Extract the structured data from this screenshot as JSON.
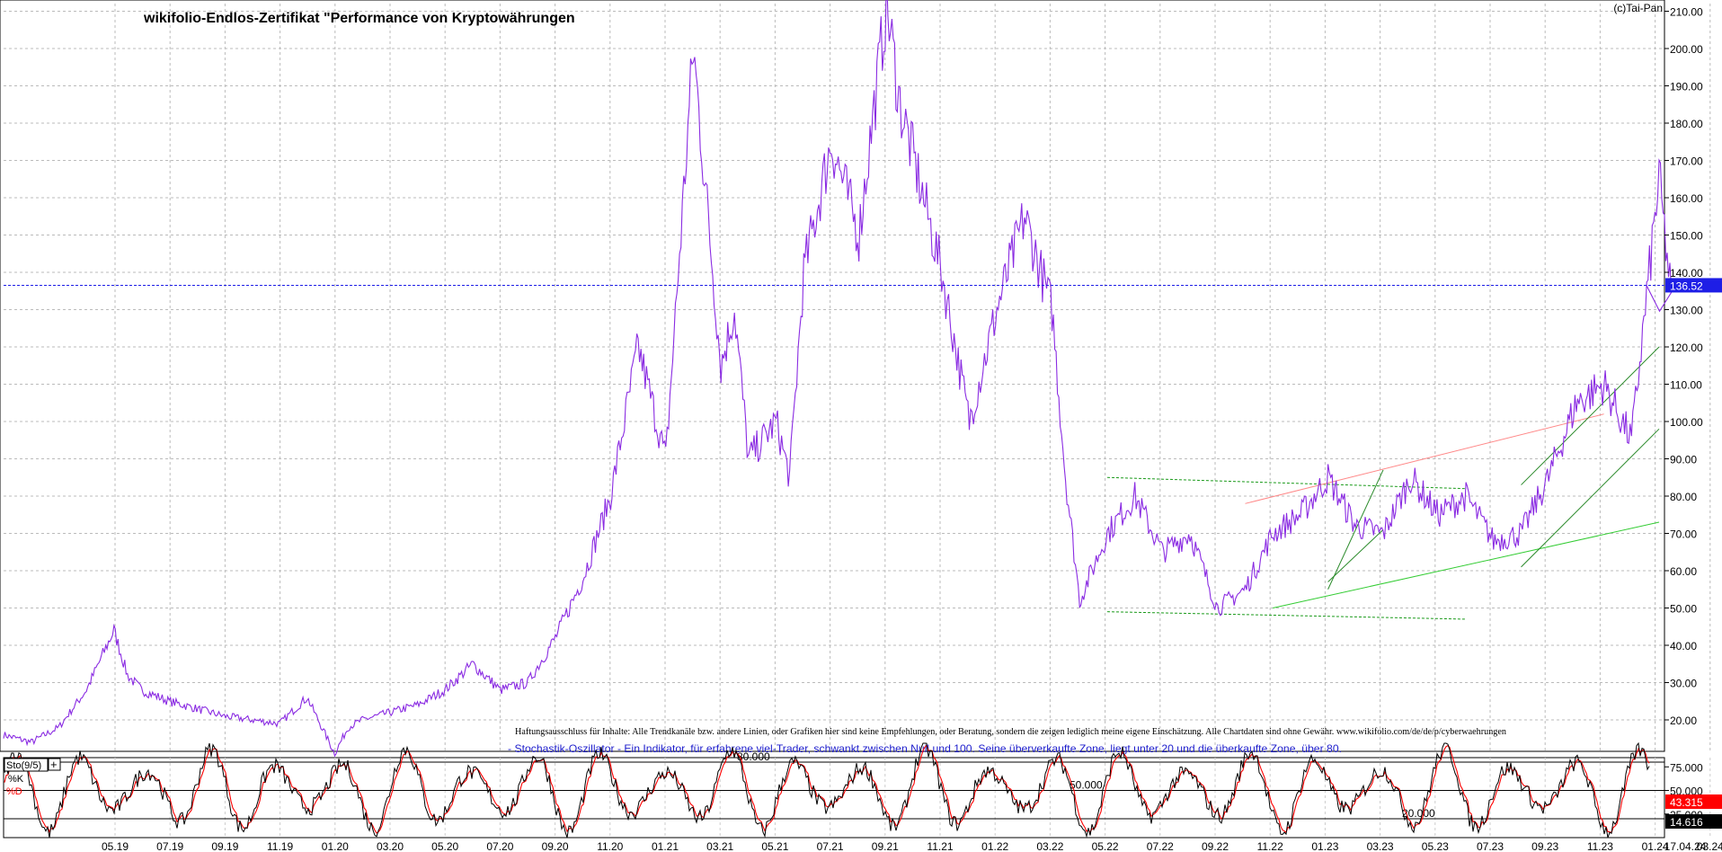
{
  "chart_data": [
    {
      "type": "line",
      "title": "wikifolio-Endlos-Zertifikat \"Performance von Kryptowährungen",
      "copyright": "(c)Tai-Pan",
      "disclaimer": "Haftungsausschluss für Inhalte: Alle Trendkanäle bzw. andere Linien, oder Grafiken hier sind keine Empfehlungen, oder Beratung, sondern die zeigen lediglich meine eigene Einschätzung. Alle Chartdaten sind ohne Gewähr. www.wikifolio.com/de/de/p/cyberwaehrungen",
      "xlabel": "",
      "ylabel": "",
      "x_ticks": [
        "05.19",
        "07.19",
        "09.19",
        "11.19",
        "01.20",
        "03.20",
        "05.20",
        "07.20",
        "09.20",
        "11.20",
        "01.21",
        "03.21",
        "05.21",
        "07.21",
        "09.21",
        "11.21",
        "01.22",
        "03.22",
        "05.22",
        "07.22",
        "09.22",
        "11.22",
        "01.23",
        "03.23",
        "05.23",
        "07.23",
        "09.23",
        "11.23",
        "01.24",
        "03.24",
        "17.04.24"
      ],
      "y_ticks": [
        20,
        30,
        40,
        50,
        60,
        70,
        80,
        90,
        100,
        110,
        120,
        130,
        140,
        150,
        160,
        170,
        180,
        190,
        200,
        210
      ],
      "y_tick_labels": [
        "20.00",
        "30.00",
        "40.00",
        "50.00",
        "60.00",
        "70.00",
        "80.00",
        "90.00",
        "100.00",
        "110.00",
        "120.00",
        "130.00",
        "140.00",
        "150.00",
        "160.00",
        "170.00",
        "180.00",
        "190.00",
        "200.00",
        "210.00"
      ],
      "ylim": [
        10,
        213
      ],
      "grid": true,
      "current_value": 136.52,
      "current_value_label": "136.52",
      "series": [
        {
          "color": "#8a2be2",
          "x": [
            "2019-03",
            "2019-04",
            "2019-05",
            "2019-06",
            "2019-07",
            "2019-07",
            "2019-08",
            "2019-09",
            "2019-10",
            "2019-11",
            "2019-12",
            "2020-01",
            "2020-02",
            "2020-03",
            "2020-03",
            "2020-04",
            "2020-05",
            "2020-06",
            "2020-07",
            "2020-08",
            "2020-09",
            "2020-10",
            "2020-11",
            "2020-12",
            "2021-01",
            "2021-02",
            "2021-03",
            "2021-04",
            "2021-05",
            "2021-05",
            "2021-06",
            "2021-07",
            "2021-07",
            "2021-08",
            "2021-09",
            "2021-10",
            "2021-11",
            "2021-11",
            "2021-12",
            "2022-01",
            "2022-02",
            "2022-03",
            "2022-04",
            "2022-05",
            "2022-05",
            "2022-06",
            "2022-07",
            "2022-08",
            "2022-09",
            "2022-10",
            "2022-11",
            "2022-12",
            "2023-01",
            "2023-02",
            "2023-03",
            "2023-04",
            "2023-05",
            "2023-06",
            "2023-07",
            "2023-08",
            "2023-09",
            "2023-10",
            "2023-11",
            "2023-12",
            "2024-01",
            "2024-02",
            "2024-03",
            "2024-03",
            "2024-04"
          ],
          "y": [
            16,
            14,
            18,
            28,
            44,
            32,
            28,
            25,
            23,
            21,
            20,
            19,
            26,
            11,
            18,
            20,
            22,
            24,
            28,
            35,
            28,
            30,
            42,
            58,
            80,
            120,
            90,
            200,
            115,
            130,
            90,
            100,
            85,
            140,
            175,
            150,
            212,
            185,
            170,
            140,
            100,
            130,
            155,
            130,
            85,
            52,
            70,
            80,
            65,
            70,
            50,
            55,
            70,
            75,
            85,
            72,
            70,
            85,
            75,
            80,
            68,
            70,
            85,
            105,
            110,
            95,
            165,
            130,
            136.52
          ]
        }
      ],
      "annotations": [
        {
          "type": "support-line-dashed",
          "color": "#1a9a1a",
          "x": [
            "2022-07",
            "2023-08"
          ],
          "y": [
            85,
            82
          ]
        },
        {
          "type": "support-line-dashed",
          "color": "#1a9a1a",
          "x": [
            "2022-07",
            "2023-08"
          ],
          "y": [
            49,
            47
          ]
        },
        {
          "type": "trend-line",
          "color": "#ff8888",
          "x": [
            "2022-12",
            "2024-01"
          ],
          "y": [
            78,
            102
          ]
        },
        {
          "type": "trend-line",
          "color": "#33cc33",
          "x": [
            "2023-01",
            "2024-03"
          ],
          "y": [
            50,
            73
          ]
        },
        {
          "type": "channel-line",
          "color": "#2a8a2a",
          "x": [
            "2023-03",
            "2023-05"
          ],
          "y": [
            55,
            87
          ]
        },
        {
          "type": "channel-line",
          "color": "#2a8a2a",
          "x": [
            "2023-03",
            "2023-05"
          ],
          "y": [
            57,
            71
          ]
        },
        {
          "type": "channel-line",
          "color": "#2a8a2a",
          "x": [
            "2023-10",
            "2024-03"
          ],
          "y": [
            83,
            120
          ]
        },
        {
          "type": "channel-line",
          "color": "#2a8a2a",
          "x": [
            "2023-10",
            "2024-03"
          ],
          "y": [
            61,
            98
          ]
        }
      ]
    },
    {
      "type": "line",
      "name": "Sto(9/5)",
      "note": "- Stochastik-Oszillator - Ein Indikator, für erfahrene viel-Trader, schwankt zwischen Null und 100. Seine überverkaufte Zone, liegt unter 20 und die überkaufte Zone, über 80.",
      "ylim": [
        0,
        100
      ],
      "y_ticks": [
        25,
        50,
        75
      ],
      "y_tick_labels": [
        "25.000",
        "50.000",
        "75.000"
      ],
      "levels": [
        {
          "value": 80,
          "label": "80.000"
        },
        {
          "value": 50,
          "label": "50.000"
        },
        {
          "value": 20,
          "label": "20.000"
        }
      ],
      "series": [
        {
          "name": "%K",
          "color": "#000000",
          "current_value": 14.616,
          "current_value_label": "14.616"
        },
        {
          "name": "%D",
          "color": "#ff0000",
          "current_value": 43.315,
          "current_value_label": "43.315"
        }
      ]
    }
  ]
}
